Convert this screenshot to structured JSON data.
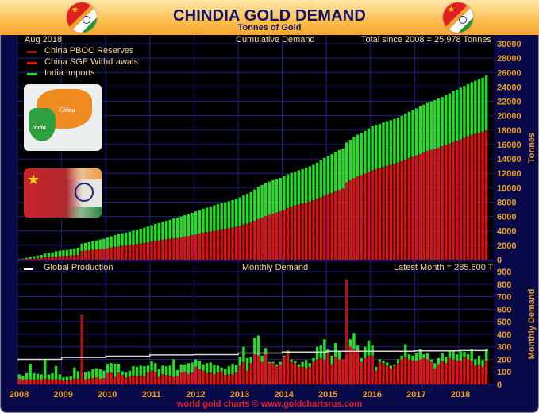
{
  "header": {
    "title": "CHINDIA GOLD DEMAND",
    "subtitle": "Tonnes of Gold"
  },
  "top_panel": {
    "date": "Aug  2018",
    "heading": "Cumulative Demand",
    "total": "Total since 2008 = 25,978 Tonnes",
    "y_title": "Tonnes"
  },
  "bottom_panel": {
    "heading": "Monthly Demand",
    "latest": "Latest Month = 285.600 T",
    "y_title": "Monthly Demand"
  },
  "legend": [
    {
      "label": "China PBOC Reserves",
      "color": "#b01010"
    },
    {
      "label": "China SGE Withdrawals",
      "color": "#e81010"
    },
    {
      "label": "India Imports",
      "color": "#20e020"
    }
  ],
  "production_legend": {
    "label": "Global Production",
    "color": "#ffffff"
  },
  "inset_map": {
    "china": "China",
    "india": "India"
  },
  "footer": "world gold charts © www.goldchartsrus.com",
  "chart_data": [
    {
      "type": "bar",
      "title": "Cumulative Demand",
      "stacked": true,
      "derived_from": "cumulative sum of monthly series",
      "ylabel": "Tonnes",
      "ylim": [
        0,
        30000
      ],
      "yticks": [
        0,
        2000,
        4000,
        6000,
        8000,
        10000,
        12000,
        14000,
        16000,
        18000,
        20000,
        22000,
        24000,
        26000,
        28000,
        30000
      ],
      "grid": true,
      "legend": "top-left"
    },
    {
      "type": "bar",
      "title": "Monthly Demand",
      "stacked": true,
      "ylabel": "Monthly Demand",
      "ylim": [
        0,
        900
      ],
      "yticks": [
        0,
        100,
        200,
        300,
        400,
        500,
        600,
        700,
        800,
        900
      ],
      "xticks": [
        "2008",
        "2009",
        "2010",
        "2011",
        "2012",
        "2013",
        "2014",
        "2015",
        "2016",
        "2017",
        "2018"
      ],
      "start": "2008-01",
      "end": "2018-08",
      "grid": true,
      "series": [
        {
          "name": "China PBOC Reserves",
          "color": "#b01010",
          "values": [
            0,
            0,
            0,
            0,
            0,
            0,
            0,
            0,
            0,
            0,
            0,
            0,
            0,
            0,
            0,
            0,
            0,
            454,
            0,
            0,
            0,
            0,
            0,
            0,
            0,
            0,
            0,
            0,
            0,
            0,
            0,
            0,
            0,
            0,
            0,
            0,
            0,
            0,
            0,
            0,
            0,
            0,
            0,
            0,
            0,
            0,
            0,
            0,
            0,
            0,
            0,
            0,
            0,
            0,
            0,
            0,
            0,
            0,
            0,
            0,
            0,
            0,
            0,
            0,
            0,
            0,
            0,
            0,
            0,
            0,
            0,
            0,
            0,
            0,
            0,
            0,
            0,
            0,
            0,
            0,
            0,
            0,
            0,
            0,
            0,
            0,
            0,
            0,
            0,
            604,
            0,
            0,
            0,
            0,
            0,
            0,
            0,
            0,
            0,
            0,
            0,
            0,
            0,
            0,
            0,
            0,
            0,
            0,
            0,
            0,
            0,
            0,
            0,
            0,
            0,
            0,
            0,
            0,
            0,
            0,
            0,
            0,
            0,
            0,
            0,
            0,
            0,
            0
          ]
        },
        {
          "name": "China SGE Withdrawals",
          "color": "#e81010",
          "values": [
            45,
            35,
            40,
            40,
            38,
            40,
            40,
            45,
            40,
            38,
            42,
            40,
            30,
            30,
            35,
            45,
            45,
            96,
            40,
            45,
            50,
            55,
            45,
            50,
            90,
            95,
            60,
            95,
            75,
            55,
            60,
            70,
            65,
            70,
            65,
            95,
            110,
            100,
            60,
            80,
            75,
            70,
            60,
            65,
            95,
            100,
            85,
            95,
            140,
            120,
            110,
            90,
            95,
            80,
            95,
            105,
            75,
            80,
            80,
            95,
            150,
            180,
            110,
            170,
            240,
            230,
            180,
            240,
            170,
            170,
            145,
            160,
            220,
            250,
            180,
            170,
            140,
            140,
            130,
            140,
            180,
            200,
            210,
            200,
            250,
            160,
            220,
            200,
            200,
            236,
            300,
            280,
            260,
            180,
            210,
            230,
            230,
            110,
            180,
            170,
            150,
            130,
            150,
            170,
            200,
            220,
            200,
            190,
            190,
            200,
            210,
            200,
            180,
            130,
            160,
            190,
            170,
            210,
            200,
            190,
            190,
            220,
            200,
            190,
            150,
            160,
            140,
            190
          ]
        },
        {
          "name": "India Imports",
          "color": "#20e020",
          "values": [
            35,
            35,
            50,
            125,
            52,
            45,
            40,
            155,
            40,
            50,
            105,
            40,
            25,
            30,
            30,
            90,
            60,
            5,
            55,
            60,
            70,
            75,
            75,
            60,
            75,
            75,
            105,
            70,
            30,
            40,
            50,
            75,
            75,
            80,
            80,
            55,
            75,
            70,
            60,
            70,
            70,
            80,
            140,
            50,
            65,
            60,
            85,
            80,
            60,
            70,
            50,
            80,
            80,
            75,
            55,
            30,
            50,
            65,
            85,
            60,
            70,
            120,
            100,
            50,
            130,
            160,
            50,
            50,
            10,
            10,
            15,
            20,
            10,
            20,
            20,
            20,
            20,
            40,
            65,
            30,
            30,
            100,
            100,
            160,
            30,
            70,
            110,
            60,
            0,
            0,
            60,
            130,
            50,
            30,
            90,
            120,
            80,
            30,
            20,
            20,
            25,
            20,
            10,
            30,
            30,
            100,
            40,
            40,
            60,
            80,
            30,
            50,
            20,
            40,
            50,
            60,
            50,
            60,
            70,
            50,
            75,
            40,
            40,
            90,
            50,
            70,
            55,
            96
          ]
        }
      ],
      "line": {
        "name": "Global Production",
        "color": "#d8d8d8",
        "years": [
          "2008",
          "2009",
          "2010",
          "2011",
          "2012",
          "2013",
          "2014",
          "2015",
          "2016",
          "2017",
          "2018"
        ],
        "values": [
          200,
          215,
          225,
          235,
          238,
          250,
          258,
          265,
          265,
          268,
          270
        ]
      }
    }
  ]
}
